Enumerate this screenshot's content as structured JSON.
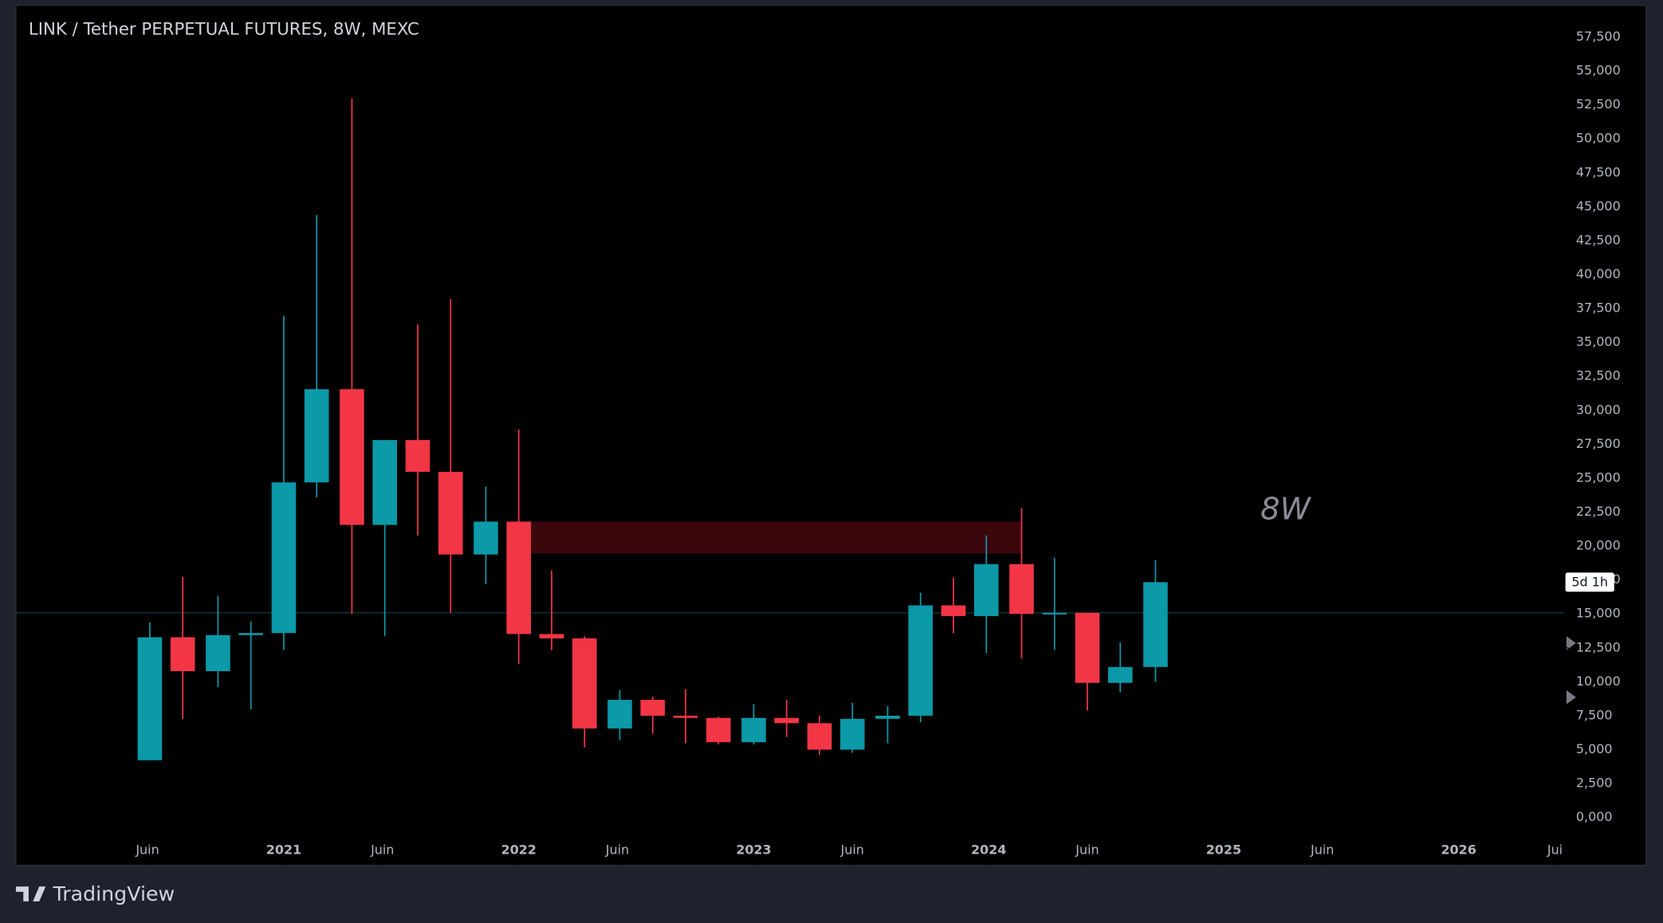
{
  "chart_data": {
    "type": "candlestick",
    "title": "LINK / Tether PERPETUAL FUTURES, 8W, MEXC",
    "x": [
      2020.43,
      2020.57,
      2020.72,
      2020.86,
      2021.0,
      2021.14,
      2021.29,
      2021.43,
      2021.57,
      2021.71,
      2021.86,
      2022.0,
      2022.14,
      2022.28,
      2022.43,
      2022.57,
      2022.71,
      2022.85,
      2023.0,
      2023.14,
      2023.28,
      2023.42,
      2023.57,
      2023.71,
      2023.85,
      2023.99,
      2024.14,
      2024.28,
      2024.42,
      2024.56,
      2024.71
    ],
    "open": [
      4.22,
      13.28,
      10.78,
      13.44,
      13.59,
      24.69,
      31.56,
      21.56,
      27.81,
      25.47,
      19.38,
      21.8,
      13.52,
      13.2,
      6.56,
      8.67,
      7.5,
      7.34,
      5.55,
      7.34,
      6.95,
      5.0,
      7.27,
      7.5,
      15.63,
      14.84,
      18.67,
      15.0,
      15.08,
      9.92,
      11.09
    ],
    "high": [
      14.38,
      17.73,
      16.33,
      14.45,
      36.95,
      44.38,
      52.97,
      27.81,
      36.33,
      38.2,
      24.38,
      28.59,
      18.2,
      13.36,
      9.38,
      8.9,
      9.45,
      7.42,
      8.36,
      8.67,
      7.5,
      8.44,
      8.2,
      16.56,
      17.66,
      20.78,
      22.81,
      19.14,
      15.08,
      12.89,
      18.98
    ],
    "low": [
      4.2,
      7.27,
      9.61,
      7.97,
      12.34,
      23.59,
      15.0,
      13.36,
      20.78,
      15.08,
      17.19,
      11.33,
      12.34,
      5.16,
      5.7,
      6.17,
      5.47,
      5.39,
      5.39,
      5.94,
      4.61,
      4.77,
      5.47,
      7.03,
      13.59,
      12.11,
      11.72,
      12.34,
      7.89,
      9.22,
      10.0
    ],
    "close": [
      13.28,
      10.78,
      13.44,
      13.59,
      24.69,
      31.56,
      21.56,
      27.81,
      25.47,
      19.38,
      21.8,
      13.52,
      13.2,
      6.56,
      8.67,
      7.5,
      7.34,
      5.55,
      7.34,
      6.95,
      5.0,
      7.27,
      7.5,
      15.63,
      14.84,
      18.67,
      15.0,
      15.08,
      9.92,
      11.09,
      17.34
    ],
    "up_color": "#0c99a8",
    "down_color": "#f23645",
    "xlim": [
      2019.86,
      2026.45
    ],
    "xticks": [
      {
        "value": 2020.42,
        "label": "Juin"
      },
      2021,
      {
        "value": 2021.42,
        "label": "Juin"
      },
      2022,
      {
        "value": 2022.42,
        "label": "Juin"
      },
      2023,
      {
        "value": 2023.42,
        "label": "Juin"
      },
      2024,
      {
        "value": 2024.42,
        "label": "Juin"
      },
      2025,
      {
        "value": 2025.42,
        "label": "Juin"
      },
      2026,
      {
        "value": 2026.41,
        "label": "Jui"
      }
    ],
    "ylim": [
      -3.52,
      59.84
    ],
    "yticks": [
      {
        "value": 0,
        "label": "0,000"
      },
      {
        "value": 2.5,
        "label": "2,500"
      },
      {
        "value": 5,
        "label": "5,000"
      },
      {
        "value": 7.5,
        "label": "7,500"
      },
      {
        "value": 10,
        "label": "10,000"
      },
      {
        "value": 12.5,
        "label": "12,500"
      },
      {
        "value": 15,
        "label": "15,000"
      },
      {
        "value": 17.5,
        "label": "17,500"
      },
      {
        "value": 20,
        "label": "20,000"
      },
      {
        "value": 22.5,
        "label": "22,500"
      },
      {
        "value": 25,
        "label": "25,000"
      },
      {
        "value": 27.5,
        "label": "27,500"
      },
      {
        "value": 30,
        "label": "30,000"
      },
      {
        "value": 32.5,
        "label": "32,500"
      },
      {
        "value": 35,
        "label": "35,000"
      },
      {
        "value": 37.5,
        "label": "37,500"
      },
      {
        "value": 40,
        "label": "40,000"
      },
      {
        "value": 42.5,
        "label": "42,500"
      },
      {
        "value": 45,
        "label": "45,000"
      },
      {
        "value": 47.5,
        "label": "47,500"
      },
      {
        "value": 50,
        "label": "50,000"
      },
      {
        "value": 52.5,
        "label": "52,500"
      },
      {
        "value": 55,
        "label": "55,000"
      },
      {
        "value": 57.5,
        "label": "57,500"
      }
    ],
    "grid": false,
    "highlight": {
      "x": [
        2022.03,
        2024.14
      ],
      "y": [
        19.45,
        21.8
      ],
      "color": "#3b070d"
    },
    "price_line": 15.08,
    "countdown": "5d 1h",
    "annotation": "8W",
    "brand": "TradingView"
  }
}
